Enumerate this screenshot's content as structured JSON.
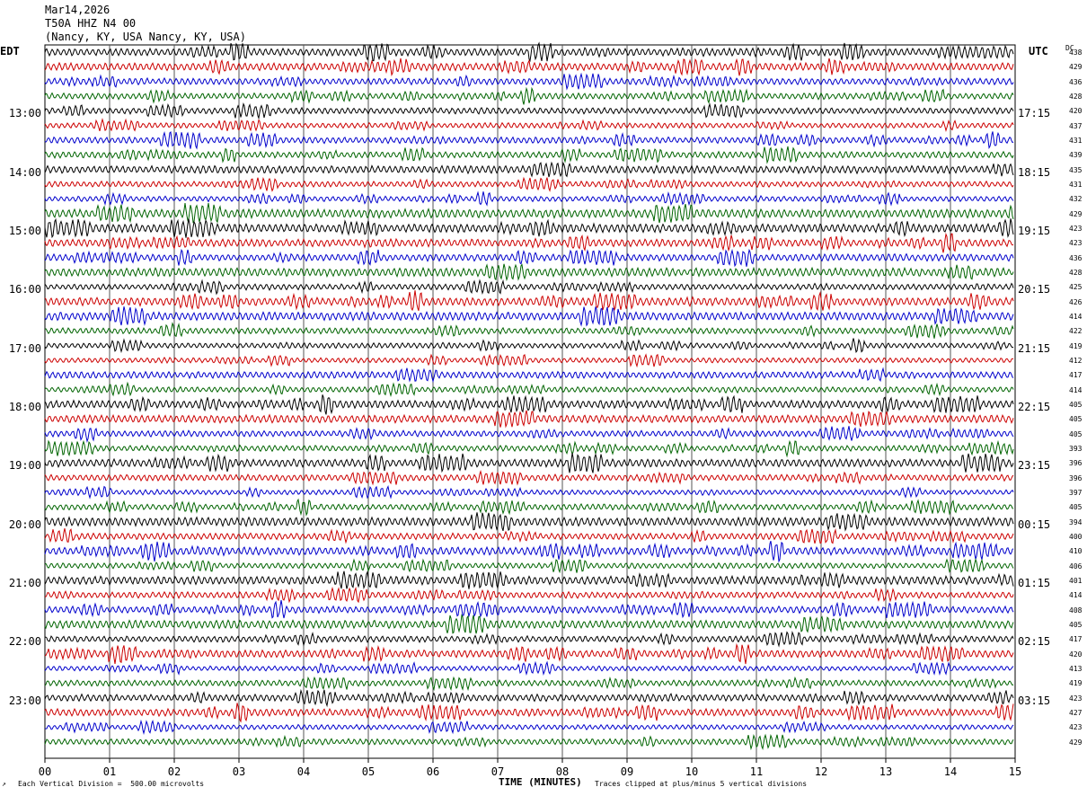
{
  "header": {
    "date": "Mar14,2026",
    "station": "T50A HHZ N4 00",
    "location": "(Nancy, KY, USA Nancy, KY, USA)"
  },
  "left_axis_label": "EDT",
  "right_axis_label": "UTC",
  "dc_label": "DC",
  "footer": {
    "vertical_division": "Each Vertical Division =  500.00 microvolts",
    "xlabel": "TIME (MINUTES)",
    "clip_note": "Traces clipped at plus/minus 5 vertical divisions"
  },
  "colors": {
    "trace_cycle": [
      "#000000",
      "#cc0000",
      "#0000cc",
      "#006400"
    ],
    "grid": "#555555",
    "background": "#ffffff"
  },
  "chart_data": {
    "type": "line",
    "description_type": "helicorder",
    "xlabel": "TIME (MINUTES)",
    "x_ticks": [
      "00",
      "01",
      "02",
      "03",
      "04",
      "05",
      "06",
      "07",
      "08",
      "09",
      "10",
      "11",
      "12",
      "13",
      "14",
      "15"
    ],
    "xlim": [
      0,
      15
    ],
    "rows_per_hour": 4,
    "left_hour_labels": [
      "13:00",
      "14:00",
      "15:00",
      "16:00",
      "17:00",
      "18:00",
      "19:00",
      "20:00",
      "21:00",
      "22:00",
      "23:00"
    ],
    "right_hour_labels": [
      "17:15",
      "18:15",
      "19:15",
      "20:15",
      "21:15",
      "22:15",
      "23:15",
      "00:15",
      "01:15",
      "02:15",
      "03:15"
    ],
    "dc_offsets": [
      438,
      429,
      436,
      428,
      420,
      437,
      431,
      439,
      435,
      431,
      432,
      429,
      423,
      423,
      436,
      428,
      425,
      426,
      414,
      422,
      419,
      412,
      417,
      414,
      405,
      405,
      405,
      393,
      396,
      396,
      397,
      405,
      394,
      400,
      410,
      406,
      401,
      414,
      408,
      405,
      417,
      420,
      413,
      419,
      423,
      427,
      423,
      429
    ]
  }
}
